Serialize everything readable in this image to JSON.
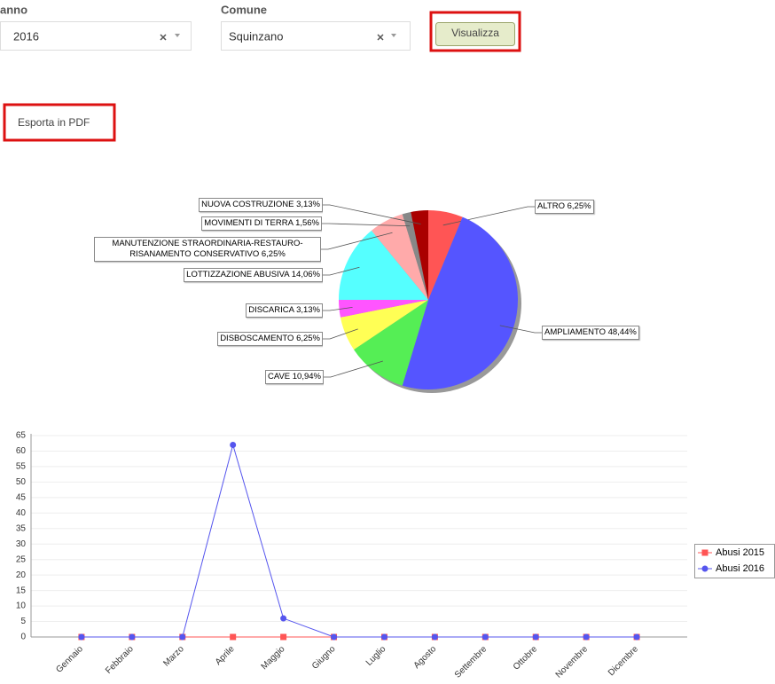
{
  "form": {
    "fields": [
      {
        "label": "anno",
        "value": "2016"
      },
      {
        "label": "Comune",
        "value": "Squinzano"
      }
    ],
    "submit": "Visualizza",
    "export": "Esporta in PDF"
  },
  "chart_data": [
    {
      "type": "pie",
      "categories": [
        "ALTRO",
        "AMPLIAMENTO",
        "CAVE",
        "DISBOSCAMENTO",
        "DISCARICA",
        "LOTTIZZAZIONE ABUSIVA",
        "MANUTENZIONE STRAORDINARIA-RESTAURO-RISANAMENTO CONSERVATIVO",
        "MOVIMENTI DI TERRA",
        "NUOVA COSTRUZIONE"
      ],
      "values": [
        6.25,
        48.44,
        10.94,
        6.25,
        3.13,
        14.06,
        6.25,
        1.56,
        3.13
      ],
      "value_labels": [
        "6,25%",
        "48,44%",
        "10,94%",
        "6,25%",
        "3,13%",
        "14,06%",
        "6,25%",
        "1,56%",
        "3,13%"
      ],
      "colors": [
        "#ff5555",
        "#5555ff",
        "#55ee55",
        "#ffff55",
        "#ff55ff",
        "#55ffff",
        "#ffaaaa",
        "#888888",
        "#aa0000"
      ]
    },
    {
      "type": "line",
      "categories": [
        "Gennaio",
        "Febbraio",
        "Marzo",
        "Aprile",
        "Maggio",
        "Giugno",
        "Luglio",
        "Agosto",
        "Settembre",
        "Ottobre",
        "Novembre",
        "Dicembre"
      ],
      "series": [
        {
          "name": "Abusi 2015",
          "color": "#ff5555",
          "marker": "square",
          "values": [
            0,
            0,
            0,
            0,
            0,
            0,
            0,
            0,
            0,
            0,
            0,
            0
          ]
        },
        {
          "name": "Abusi 2016",
          "color": "#5555ee",
          "marker": "circle",
          "values": [
            0,
            0,
            0,
            62,
            6,
            0,
            0,
            0,
            0,
            0,
            0,
            0
          ]
        }
      ],
      "ylim": [
        0,
        65
      ],
      "yticks": [
        0,
        5,
        10,
        15,
        20,
        25,
        30,
        35,
        40,
        45,
        50,
        55,
        60,
        65
      ],
      "grid": true,
      "legend": "right"
    }
  ]
}
